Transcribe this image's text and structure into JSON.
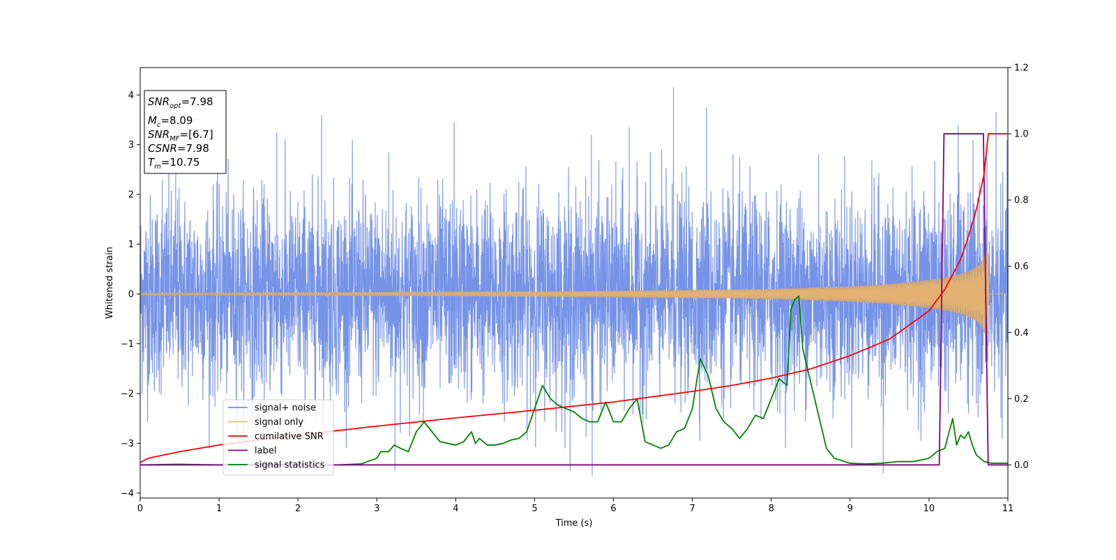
{
  "chart_data": {
    "type": "line",
    "title": "",
    "xlabel": "Time (s)",
    "ylabel_left": "Whitened strain",
    "ylabel_right": "",
    "xlim": [
      0,
      11
    ],
    "ylim_left": [
      -4.1,
      4.55
    ],
    "ylim_right": [
      -0.1,
      1.2
    ],
    "x_ticks": [
      0,
      1,
      2,
      3,
      4,
      5,
      6,
      7,
      8,
      9,
      10,
      11
    ],
    "y_ticks_left": [
      -4,
      -3,
      -2,
      -1,
      0,
      1,
      2,
      3,
      4
    ],
    "y_ticks_right": [
      0.0,
      0.2,
      0.4,
      0.6,
      0.8,
      1.0,
      1.2
    ],
    "grid": false,
    "colors": {
      "signal_noise": "#6f8de6",
      "signal_only": "#f2b86b",
      "signal_fill": "#c4a07a",
      "cumulative_snr": "#ff0000",
      "label": "#800080",
      "signal_statistics": "#008000"
    },
    "legend": {
      "placement": "lower-left",
      "entries": [
        {
          "name": "signal+ noise",
          "color": "#6f8de6"
        },
        {
          "name": "signal only",
          "color": "#f2b86b"
        },
        {
          "name": "cumilative SNR",
          "color": "#ff0000"
        },
        {
          "name": "label",
          "color": "#800080"
        },
        {
          "name": "signal statistics",
          "color": "#008000"
        }
      ]
    },
    "stats_box": {
      "snr_opt": {
        "sym": "SNR",
        "sub": "opt",
        "val": "=7.98"
      },
      "mc": {
        "sym": "M",
        "sub": "c",
        "val": "=8.09"
      },
      "snr_mf": {
        "sym": "SNR",
        "sub": "MF",
        "val": "=[6.7]"
      },
      "csnr": {
        "sym": "CSNR",
        "val": "=7.98"
      },
      "tm": {
        "sym": "T",
        "sub": "m",
        "val": "=10.75"
      }
    },
    "series": [
      {
        "name": "signal+ noise",
        "axis": "left",
        "description_values": "random whitened noise, std ~1.0, range -3.6 to 4.2",
        "spikes": [
          [
            0.28,
            2.3
          ],
          [
            0.45,
            2.45
          ],
          [
            1.73,
            3.25
          ],
          [
            2.3,
            3.6
          ],
          [
            3.15,
            2.85
          ],
          [
            3.98,
            3.45
          ],
          [
            4.8,
            2.25
          ],
          [
            5.72,
            3.2
          ],
          [
            6.2,
            3.35
          ],
          [
            6.76,
            4.15
          ],
          [
            7.18,
            3.75
          ],
          [
            8.6,
            2.8
          ],
          [
            10.37,
            3.4
          ],
          [
            10.85,
            3.65
          ],
          [
            5.45,
            -3.55
          ],
          [
            5.73,
            -3.65
          ],
          [
            3.23,
            -3.55
          ],
          [
            9.42,
            -3.6
          ],
          [
            10.5,
            -2.4
          ],
          [
            10.6,
            -2.2
          ]
        ]
      },
      {
        "name": "signal only",
        "axis": "left",
        "description_values": "chirp: amplitude 0.02 at t=0 growing to ~0.9 at t=10.75, then 0",
        "envelope": [
          [
            0,
            0.02
          ],
          [
            2,
            0.03
          ],
          [
            4,
            0.04
          ],
          [
            6,
            0.06
          ],
          [
            8,
            0.1
          ],
          [
            9,
            0.15
          ],
          [
            9.5,
            0.2
          ],
          [
            10,
            0.28
          ],
          [
            10.3,
            0.36
          ],
          [
            10.5,
            0.45
          ],
          [
            10.65,
            0.6
          ],
          [
            10.72,
            0.85
          ],
          [
            10.75,
            0.9
          ],
          [
            10.76,
            0.0
          ],
          [
            11,
            0.0
          ]
        ]
      },
      {
        "name": "cumilative SNR",
        "axis": "right",
        "x": [
          0,
          0.1,
          0.5,
          1,
          2,
          3,
          4,
          5,
          6,
          7,
          7.5,
          8,
          8.5,
          9,
          9.5,
          10,
          10.2,
          10.4,
          10.5,
          10.6,
          10.7,
          10.75,
          11
        ],
        "values": [
          0.007,
          0.02,
          0.04,
          0.06,
          0.09,
          0.117,
          0.142,
          0.165,
          0.19,
          0.222,
          0.24,
          0.262,
          0.29,
          0.33,
          0.38,
          0.465,
          0.53,
          0.62,
          0.69,
          0.77,
          0.88,
          1.0,
          1.0
        ]
      },
      {
        "name": "label",
        "axis": "right",
        "x": [
          0,
          10.13,
          10.19,
          10.69,
          10.75,
          11
        ],
        "values": [
          0.0,
          0.0,
          1.0,
          1.0,
          0.0,
          0.0
        ]
      },
      {
        "name": "signal statistics",
        "axis": "right",
        "x": [
          0,
          0.5,
          1,
          1.5,
          2,
          2.5,
          2.8,
          3.0,
          3.05,
          3.15,
          3.22,
          3.3,
          3.4,
          3.5,
          3.6,
          3.7,
          3.8,
          3.9,
          4.0,
          4.1,
          4.2,
          4.25,
          4.3,
          4.4,
          4.5,
          4.6,
          4.7,
          4.8,
          4.9,
          5.0,
          5.1,
          5.2,
          5.3,
          5.4,
          5.5,
          5.6,
          5.7,
          5.8,
          5.9,
          6.0,
          6.1,
          6.2,
          6.3,
          6.4,
          6.5,
          6.6,
          6.7,
          6.8,
          6.9,
          7.0,
          7.1,
          7.2,
          7.3,
          7.4,
          7.5,
          7.6,
          7.7,
          7.8,
          7.9,
          8.0,
          8.1,
          8.2,
          8.25,
          8.3,
          8.35,
          8.4,
          8.5,
          8.6,
          8.7,
          8.8,
          9.0,
          9.2,
          9.4,
          9.6,
          9.8,
          10.0,
          10.1,
          10.2,
          10.3,
          10.35,
          10.4,
          10.45,
          10.5,
          10.55,
          10.6,
          10.7,
          10.8,
          10.9,
          11.0
        ],
        "values": [
          0.0,
          0.002,
          0.0,
          0.002,
          0.0,
          0.0,
          0.003,
          0.02,
          0.04,
          0.04,
          0.06,
          0.05,
          0.04,
          0.1,
          0.13,
          0.1,
          0.07,
          0.065,
          0.06,
          0.07,
          0.1,
          0.065,
          0.08,
          0.06,
          0.06,
          0.065,
          0.075,
          0.08,
          0.1,
          0.17,
          0.24,
          0.2,
          0.18,
          0.17,
          0.16,
          0.14,
          0.13,
          0.13,
          0.19,
          0.13,
          0.13,
          0.17,
          0.2,
          0.07,
          0.06,
          0.05,
          0.06,
          0.1,
          0.11,
          0.17,
          0.32,
          0.27,
          0.17,
          0.13,
          0.11,
          0.08,
          0.11,
          0.15,
          0.14,
          0.2,
          0.26,
          0.24,
          0.47,
          0.5,
          0.51,
          0.35,
          0.25,
          0.15,
          0.05,
          0.02,
          0.005,
          0.003,
          0.005,
          0.01,
          0.01,
          0.02,
          0.04,
          0.05,
          0.14,
          0.06,
          0.09,
          0.08,
          0.1,
          0.06,
          0.03,
          0.01,
          0.005,
          0.005,
          0.005
        ]
      }
    ]
  }
}
